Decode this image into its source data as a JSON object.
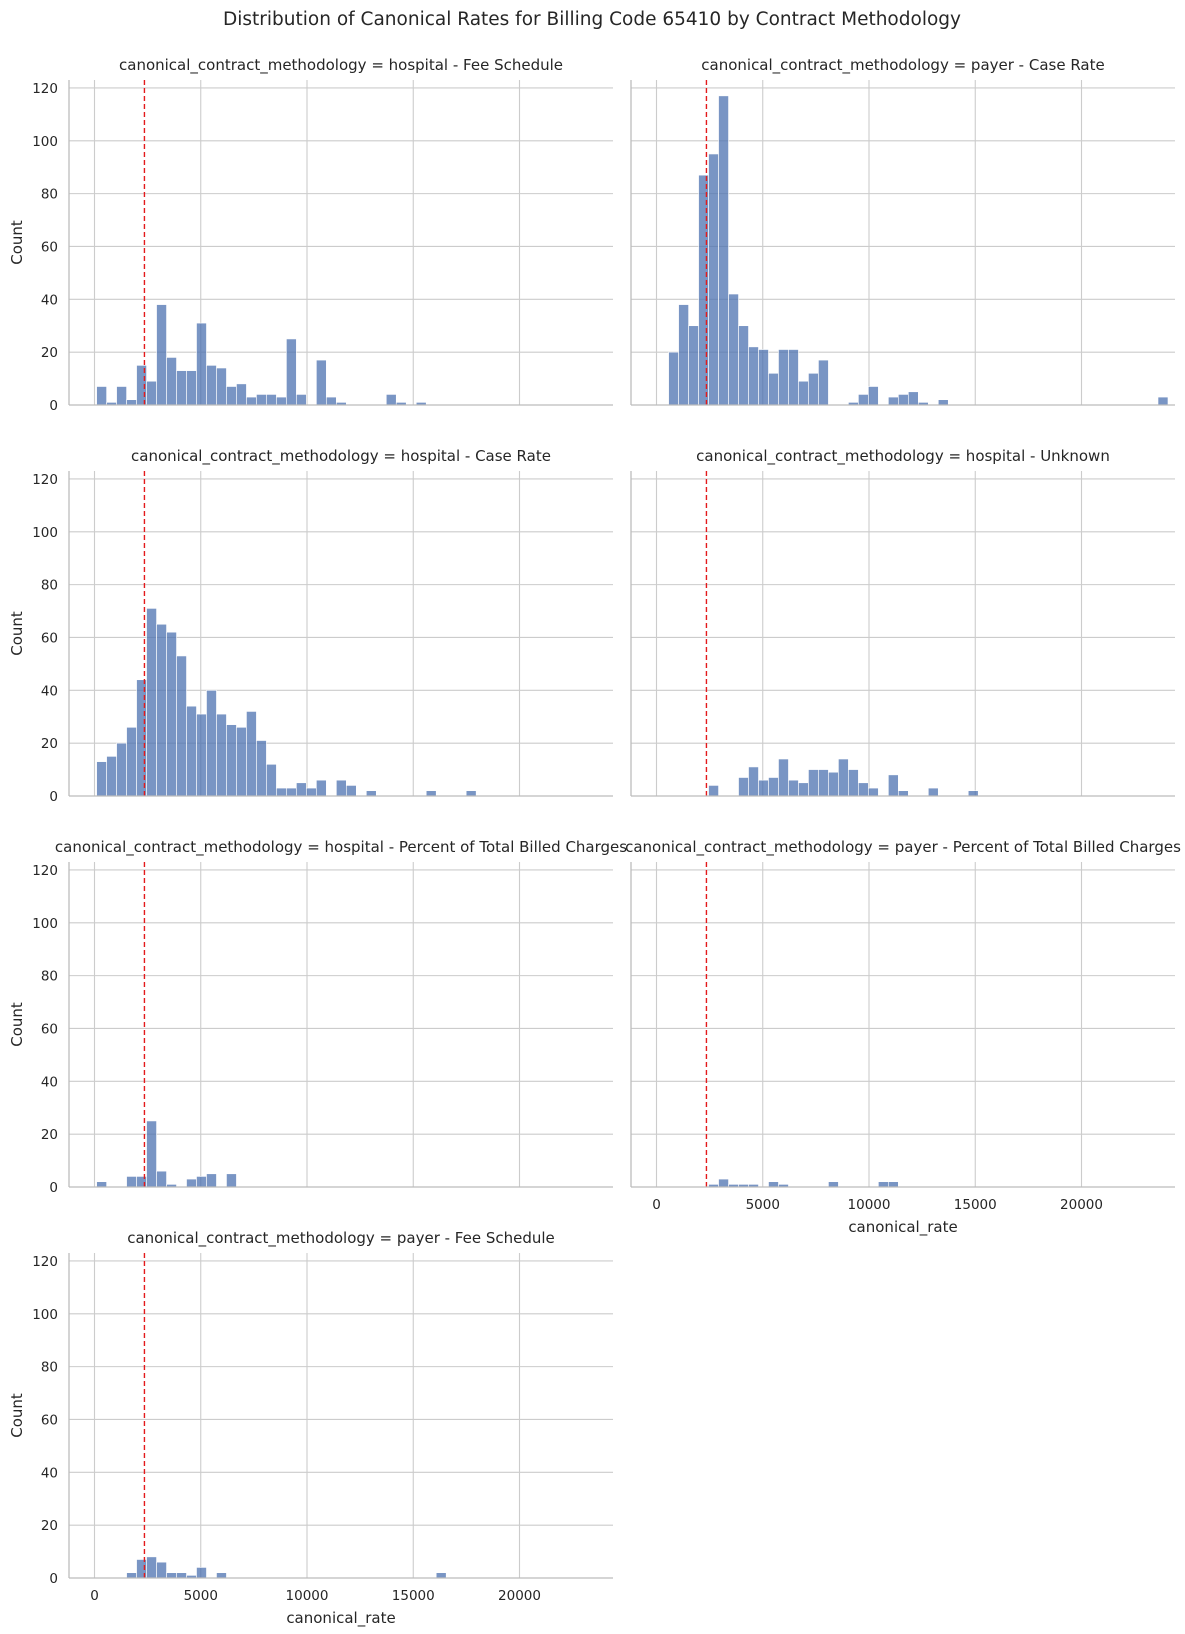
{
  "chart_data": {
    "type": "histogram",
    "title": "Distribution of Canonical Rates for Billing Code 65410 by Contract Methodology",
    "xlabel": "canonical_rate",
    "ylabel": "Count",
    "xlim": [
      -1200,
      24400
    ],
    "ylim": [
      0,
      123
    ],
    "xticks": [
      0,
      5000,
      10000,
      15000,
      20000
    ],
    "yticks": [
      0,
      20,
      40,
      60,
      80,
      100,
      120
    ],
    "bin_start": 100,
    "bin_width": 470,
    "reference_line_x": 2350,
    "reference_line_color": "#e31a1c",
    "bar_color": "#4c72b0",
    "panels": [
      {
        "title": "canonical_contract_methodology = hospital - Fee Schedule",
        "counts": [
          7,
          1,
          7,
          2,
          15,
          9,
          38,
          18,
          13,
          13,
          31,
          15,
          14,
          7,
          8,
          3,
          4,
          4,
          3,
          25,
          4,
          0,
          17,
          3,
          1,
          0,
          0,
          0,
          0,
          4,
          1,
          0,
          1
        ]
      },
      {
        "title": "canonical_contract_methodology = payer - Case Rate",
        "counts": [
          0,
          20,
          38,
          30,
          87,
          95,
          117,
          42,
          30,
          22,
          21,
          12,
          21,
          21,
          9,
          12,
          17,
          0,
          0,
          1,
          4,
          7,
          0,
          3,
          4,
          5,
          1,
          0,
          2,
          0,
          0,
          0,
          0,
          0,
          0,
          0,
          0,
          0,
          0,
          0,
          0,
          0,
          0,
          0,
          0,
          0,
          0,
          0,
          0,
          0,
          3
        ]
      },
      {
        "title": "canonical_contract_methodology = hospital - Case Rate",
        "counts": [
          13,
          15,
          20,
          26,
          44,
          71,
          65,
          62,
          53,
          34,
          31,
          40,
          31,
          27,
          26,
          32,
          21,
          12,
          3,
          3,
          5,
          3,
          6,
          0,
          6,
          4,
          0,
          2,
          0,
          0,
          0,
          0,
          0,
          2,
          0,
          0,
          0,
          2
        ]
      },
      {
        "title": "canonical_contract_methodology = hospital - Unknown",
        "counts": [
          0,
          0,
          0,
          0,
          0,
          4,
          0,
          0,
          7,
          11,
          6,
          7,
          14,
          6,
          5,
          10,
          10,
          9,
          14,
          10,
          5,
          3,
          0,
          8,
          2,
          0,
          0,
          3,
          0,
          0,
          0,
          2
        ]
      },
      {
        "title": "canonical_contract_methodology = hospital - Percent of Total Billed Charges",
        "counts": [
          2,
          0,
          0,
          4,
          4,
          25,
          6,
          1,
          0,
          3,
          4,
          5,
          0,
          5,
          0,
          0,
          0,
          0,
          0,
          0,
          0,
          0,
          0,
          0,
          0,
          0,
          0,
          0,
          0,
          0,
          0,
          0,
          0,
          0
        ]
      },
      {
        "title": "canonical_contract_methodology = payer - Percent of Total Billed Charges",
        "counts": [
          0,
          0,
          0,
          0,
          0,
          1,
          3,
          1,
          1,
          1,
          0,
          2,
          1,
          0,
          0,
          0,
          0,
          2,
          0,
          0,
          0,
          0,
          2,
          2
        ]
      },
      {
        "title": "canonical_contract_methodology = payer - Fee Schedule",
        "counts": [
          0,
          0,
          0,
          2,
          7,
          8,
          6,
          2,
          2,
          1,
          4,
          0,
          2,
          0,
          0,
          0,
          0,
          0,
          0,
          0,
          0,
          0,
          0,
          0,
          0,
          0,
          0,
          0,
          0,
          0,
          0,
          0,
          0,
          0,
          2
        ]
      }
    ]
  }
}
